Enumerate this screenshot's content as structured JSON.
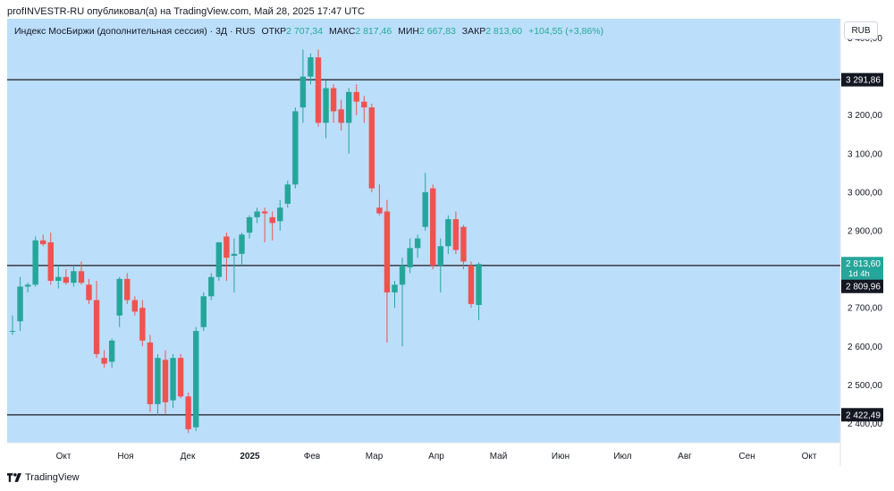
{
  "caption": "profINVESTR-RU опубликовал(а) на TradingView.com, Май 28, 2025 17:47 UTC",
  "legend": {
    "symbol": "Индекс МосБиржи (дополнительная сессия) · 3Д · RUS",
    "open_label": "ОТКР",
    "open": "2 707,34",
    "high_label": "МАКС",
    "high": "2 817,46",
    "low_label": "МИН",
    "low": "2 667,83",
    "close_label": "ЗАКР",
    "close": "2 813,60",
    "change": "+104,55 (+3,86%)"
  },
  "currency": "RUB",
  "footer_brand": "TradingView",
  "colors": {
    "background": "#bbdefb",
    "up": "#26a69a",
    "down": "#ef5350",
    "level_line": "#434651",
    "price_tag": "#26a69a"
  },
  "chart_data": {
    "type": "candlestick",
    "ylim": [
      2350,
      3450
    ],
    "y_ticks": [
      "2 400,00",
      "2 500,00",
      "2 600,00",
      "2 700,00",
      "2 800,00",
      "2 900,00",
      "3 000,00",
      "3 100,00",
      "3 200,00",
      "3 300,00",
      "3 400,00"
    ],
    "y_tick_values": [
      2400,
      2500,
      2600,
      2700,
      2800,
      2900,
      3000,
      3100,
      3200,
      3300,
      3400
    ],
    "x_ticks": [
      "Окт",
      "Ноя",
      "Дек",
      "2025",
      "Фев",
      "Мар",
      "Апр",
      "Май",
      "Июн",
      "Июл",
      "Авг",
      "Сен",
      "Окт"
    ],
    "x_tick_bold": [
      false,
      false,
      false,
      true,
      false,
      false,
      false,
      false,
      false,
      false,
      false,
      false,
      false
    ],
    "horizontal_levels": [
      {
        "value": 3291.86,
        "label": "3 291,86"
      },
      {
        "value": 2809.96,
        "label": "2 809,96"
      },
      {
        "value": 2422.49,
        "label": "2 422,49"
      }
    ],
    "last_price": {
      "value": 2813.6,
      "label": "2 813,60",
      "countdown": "1d 4h"
    },
    "candles": [
      {
        "o": 2640,
        "h": 2680,
        "l": 2630,
        "c": 2640
      },
      {
        "o": 2665,
        "h": 2780,
        "l": 2640,
        "c": 2755
      },
      {
        "o": 2755,
        "h": 2765,
        "l": 2740,
        "c": 2760
      },
      {
        "o": 2760,
        "h": 2885,
        "l": 2755,
        "c": 2875
      },
      {
        "o": 2875,
        "h": 2890,
        "l": 2860,
        "c": 2865
      },
      {
        "o": 2870,
        "h": 2895,
        "l": 2760,
        "c": 2770
      },
      {
        "o": 2770,
        "h": 2810,
        "l": 2750,
        "c": 2780
      },
      {
        "o": 2780,
        "h": 2800,
        "l": 2760,
        "c": 2765
      },
      {
        "o": 2765,
        "h": 2810,
        "l": 2755,
        "c": 2795
      },
      {
        "o": 2795,
        "h": 2820,
        "l": 2760,
        "c": 2765
      },
      {
        "o": 2760,
        "h": 2775,
        "l": 2710,
        "c": 2720
      },
      {
        "o": 2720,
        "h": 2770,
        "l": 2570,
        "c": 2580
      },
      {
        "o": 2570,
        "h": 2590,
        "l": 2545,
        "c": 2555
      },
      {
        "o": 2560,
        "h": 2620,
        "l": 2545,
        "c": 2615
      },
      {
        "o": 2680,
        "h": 2780,
        "l": 2650,
        "c": 2775
      },
      {
        "o": 2775,
        "h": 2790,
        "l": 2710,
        "c": 2720
      },
      {
        "o": 2720,
        "h": 2730,
        "l": 2680,
        "c": 2690
      },
      {
        "o": 2700,
        "h": 2720,
        "l": 2600,
        "c": 2615
      },
      {
        "o": 2610,
        "h": 2630,
        "l": 2430,
        "c": 2450
      },
      {
        "o": 2450,
        "h": 2580,
        "l": 2420,
        "c": 2570
      },
      {
        "o": 2565,
        "h": 2590,
        "l": 2425,
        "c": 2455
      },
      {
        "o": 2460,
        "h": 2580,
        "l": 2440,
        "c": 2570
      },
      {
        "o": 2570,
        "h": 2580,
        "l": 2465,
        "c": 2470
      },
      {
        "o": 2470,
        "h": 2480,
        "l": 2375,
        "c": 2385
      },
      {
        "o": 2390,
        "h": 2650,
        "l": 2380,
        "c": 2640
      },
      {
        "o": 2650,
        "h": 2740,
        "l": 2640,
        "c": 2730
      },
      {
        "o": 2730,
        "h": 2790,
        "l": 2720,
        "c": 2780
      },
      {
        "o": 2780,
        "h": 2870,
        "l": 2770,
        "c": 2870
      },
      {
        "o": 2885,
        "h": 2895,
        "l": 2770,
        "c": 2830
      },
      {
        "o": 2835,
        "h": 2880,
        "l": 2740,
        "c": 2840
      },
      {
        "o": 2840,
        "h": 2895,
        "l": 2810,
        "c": 2890
      },
      {
        "o": 2895,
        "h": 2940,
        "l": 2880,
        "c": 2935
      },
      {
        "o": 2935,
        "h": 2960,
        "l": 2920,
        "c": 2950
      },
      {
        "o": 2950,
        "h": 2960,
        "l": 2870,
        "c": 2945
      },
      {
        "o": 2935,
        "h": 2950,
        "l": 2875,
        "c": 2920
      },
      {
        "o": 2925,
        "h": 2980,
        "l": 2900,
        "c": 2960
      },
      {
        "o": 2970,
        "h": 3030,
        "l": 2960,
        "c": 3020
      },
      {
        "o": 3020,
        "h": 3220,
        "l": 3010,
        "c": 3210
      },
      {
        "o": 3220,
        "h": 3370,
        "l": 3180,
        "c": 3300
      },
      {
        "o": 3300,
        "h": 3360,
        "l": 3280,
        "c": 3350
      },
      {
        "o": 3350,
        "h": 3370,
        "l": 3170,
        "c": 3180
      },
      {
        "o": 3180,
        "h": 3290,
        "l": 3140,
        "c": 3270
      },
      {
        "o": 3270,
        "h": 3280,
        "l": 3180,
        "c": 3210
      },
      {
        "o": 3215,
        "h": 3240,
        "l": 3160,
        "c": 3180
      },
      {
        "o": 3180,
        "h": 3270,
        "l": 3100,
        "c": 3260
      },
      {
        "o": 3260,
        "h": 3280,
        "l": 3200,
        "c": 3235
      },
      {
        "o": 3235,
        "h": 3250,
        "l": 3180,
        "c": 3220
      },
      {
        "o": 3220,
        "h": 3230,
        "l": 3000,
        "c": 3010
      },
      {
        "o": 2960,
        "h": 3020,
        "l": 2940,
        "c": 2945
      },
      {
        "o": 2950,
        "h": 2980,
        "l": 2610,
        "c": 2740
      },
      {
        "o": 2740,
        "h": 2770,
        "l": 2700,
        "c": 2760
      },
      {
        "o": 2760,
        "h": 2830,
        "l": 2600,
        "c": 2810
      },
      {
        "o": 2805,
        "h": 2880,
        "l": 2790,
        "c": 2855
      },
      {
        "o": 2855,
        "h": 2890,
        "l": 2830,
        "c": 2880
      },
      {
        "o": 2910,
        "h": 3050,
        "l": 2900,
        "c": 3000
      },
      {
        "o": 3010,
        "h": 3020,
        "l": 2800,
        "c": 2810
      },
      {
        "o": 2810,
        "h": 2880,
        "l": 2740,
        "c": 2860
      },
      {
        "o": 2860,
        "h": 2940,
        "l": 2840,
        "c": 2930
      },
      {
        "o": 2930,
        "h": 2950,
        "l": 2840,
        "c": 2850
      },
      {
        "o": 2910,
        "h": 2915,
        "l": 2800,
        "c": 2820
      },
      {
        "o": 2810,
        "h": 2820,
        "l": 2700,
        "c": 2710
      },
      {
        "o": 2707.34,
        "h": 2817.46,
        "l": 2667.83,
        "c": 2813.6
      }
    ]
  }
}
